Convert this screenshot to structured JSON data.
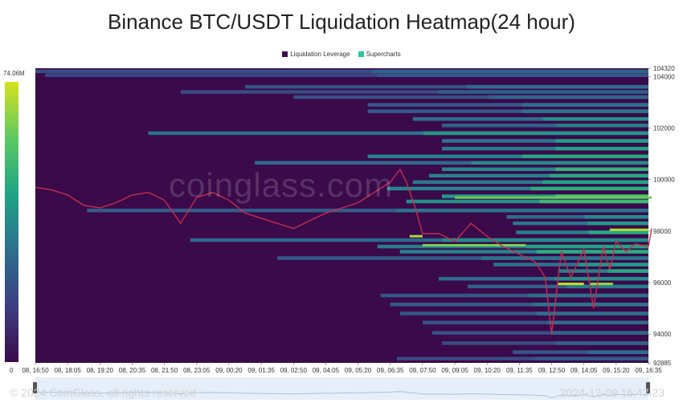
{
  "chart_data": {
    "type": "heatmap",
    "title": "Binance BTC/USDT Liquidation Heatmap(24 hour)",
    "legend": [
      {
        "name": "Liquidation Leverage",
        "color": "#3b0f4f"
      },
      {
        "name": "Supercharts",
        "color": "#26c99a"
      }
    ],
    "colorscale": {
      "max_label": "74.06M",
      "min_label": "0",
      "colors": [
        "#3a0a4a",
        "#3c3f82",
        "#2c6f8e",
        "#20a486",
        "#5ec962",
        "#d6e21d"
      ]
    },
    "y_axis": {
      "min": 92885,
      "max": 104320,
      "ticks": [
        104320,
        104000,
        102000,
        100000,
        98000,
        96000,
        94000,
        92885
      ]
    },
    "x_axis": {
      "ticks": [
        "08, 16:50",
        "08, 18:05",
        "08, 19:20",
        "08, 20:35",
        "08, 21:50",
        "08, 23:05",
        "09, 00:20",
        "09, 01:35",
        "09, 02:50",
        "09, 04:05",
        "09, 05:20",
        "09, 06:35",
        "09, 07:50",
        "09, 09:05",
        "09, 10:20",
        "09, 11:35",
        "09, 12:50",
        "09, 14:05",
        "09, 15:20",
        "09, 16:35"
      ]
    },
    "price_series": {
      "t": [
        0,
        0.5,
        1,
        1.5,
        2,
        2.5,
        3,
        3.5,
        4,
        4.5,
        5,
        5.5,
        6,
        6.5,
        7,
        7.5,
        8,
        8.5,
        9,
        9.5,
        10,
        10.5,
        11,
        11.3,
        11.5,
        11.8,
        12,
        12.5,
        13,
        13.5,
        14,
        14.5,
        15,
        15.5,
        15.8,
        16,
        16.3,
        16.6,
        17,
        17.3,
        17.6,
        17.8,
        18,
        18.3,
        18.6,
        19,
        19.1
      ],
      "price": [
        99700,
        99600,
        99400,
        99000,
        98900,
        99100,
        99400,
        99500,
        99200,
        98300,
        99300,
        99500,
        99200,
        98700,
        98500,
        98300,
        98100,
        98400,
        98700,
        98900,
        99100,
        99500,
        99900,
        100400,
        99900,
        98800,
        97900,
        97900,
        97600,
        98300,
        97800,
        97400,
        97100,
        96800,
        96200,
        94000,
        97200,
        96200,
        97300,
        95000,
        97400,
        96500,
        97600,
        97200,
        97500,
        97400,
        98100
      ]
    },
    "bands": [
      {
        "price": 104200,
        "t0": 0,
        "intensity": 0.35
      },
      {
        "price": 104050,
        "t0": 0.3,
        "intensity": 0.3
      },
      {
        "price": 103600,
        "t0": 6.5,
        "intensity": 0.38
      },
      {
        "price": 103400,
        "t0": 4.5,
        "intensity": 0.32
      },
      {
        "price": 103200,
        "t0": 8,
        "intensity": 0.36
      },
      {
        "price": 102900,
        "t0": 10.3,
        "intensity": 0.4
      },
      {
        "price": 102650,
        "t0": 10.3,
        "intensity": 0.42
      },
      {
        "price": 102350,
        "t0": 11.7,
        "intensity": 0.52
      },
      {
        "price": 102100,
        "t0": 12.6,
        "intensity": 0.46
      },
      {
        "price": 101800,
        "t0": 3.5,
        "intensity": 0.55
      },
      {
        "price": 101500,
        "t0": 12.6,
        "intensity": 0.58
      },
      {
        "price": 101200,
        "t0": 12.6,
        "intensity": 0.6
      },
      {
        "price": 100900,
        "t0": 10.3,
        "intensity": 0.62
      },
      {
        "price": 100650,
        "t0": 6.8,
        "intensity": 0.5
      },
      {
        "price": 100400,
        "t0": 12.6,
        "intensity": 0.66
      },
      {
        "price": 100150,
        "t0": 12.2,
        "intensity": 0.62
      },
      {
        "price": 99900,
        "t0": 11.7,
        "intensity": 0.6
      },
      {
        "price": 99650,
        "t0": 10.9,
        "intensity": 0.64
      },
      {
        "price": 99350,
        "t0": 12.6,
        "intensity": 0.74
      },
      {
        "price": 99150,
        "t0": 11.5,
        "intensity": 0.7
      },
      {
        "price": 98800,
        "t0": 1.6,
        "intensity": 0.42
      },
      {
        "price": 98550,
        "t0": 14.6,
        "intensity": 0.5
      },
      {
        "price": 98300,
        "t0": 14.8,
        "intensity": 0.56
      },
      {
        "price": 97950,
        "t0": 14.9,
        "intensity": 0.62
      },
      {
        "price": 97650,
        "t0": 4.8,
        "intensity": 0.5
      },
      {
        "price": 97400,
        "t0": 10.6,
        "intensity": 0.6
      },
      {
        "price": 97200,
        "t0": 11.3,
        "intensity": 0.64
      },
      {
        "price": 96950,
        "t0": 7.5,
        "intensity": 0.42
      },
      {
        "price": 96700,
        "t0": 14.2,
        "intensity": 0.55
      },
      {
        "price": 96450,
        "t0": 16.2,
        "intensity": 0.62
      },
      {
        "price": 96150,
        "t0": 12.5,
        "intensity": 0.52
      },
      {
        "price": 95850,
        "t0": 13.4,
        "intensity": 0.45
      },
      {
        "price": 95500,
        "t0": 10.7,
        "intensity": 0.4
      },
      {
        "price": 95150,
        "t0": 11,
        "intensity": 0.42
      },
      {
        "price": 94800,
        "t0": 11.3,
        "intensity": 0.4
      },
      {
        "price": 94450,
        "t0": 12,
        "intensity": 0.38
      },
      {
        "price": 94050,
        "t0": 12.3,
        "intensity": 0.36
      },
      {
        "price": 93650,
        "t0": 12.6,
        "intensity": 0.34
      },
      {
        "price": 93300,
        "t0": 14.8,
        "intensity": 0.4
      },
      {
        "price": 93050,
        "t0": 11.2,
        "intensity": 0.32
      }
    ],
    "hot_segments": [
      {
        "price": 97800,
        "t0": 11.6,
        "t1": 12,
        "intensity": 0.92
      },
      {
        "price": 97450,
        "t0": 12,
        "t1": 15.2,
        "intensity": 0.85
      },
      {
        "price": 98050,
        "t0": 17.8,
        "t1": 19,
        "intensity": 0.95
      },
      {
        "price": 95950,
        "t0": 16.2,
        "t1": 17,
        "intensity": 0.98
      },
      {
        "price": 95950,
        "t0": 17.2,
        "t1": 17.9,
        "intensity": 0.9
      },
      {
        "price": 99300,
        "t0": 13,
        "t1": 19.1,
        "intensity": 0.82
      }
    ],
    "price_line_color": "#c0304f"
  },
  "watermark": "coinglass.com",
  "footer": {
    "copyright": "© 2024 CoinGlass, all rights reserved",
    "timestamp": "2024-12-09 16:47:23"
  }
}
